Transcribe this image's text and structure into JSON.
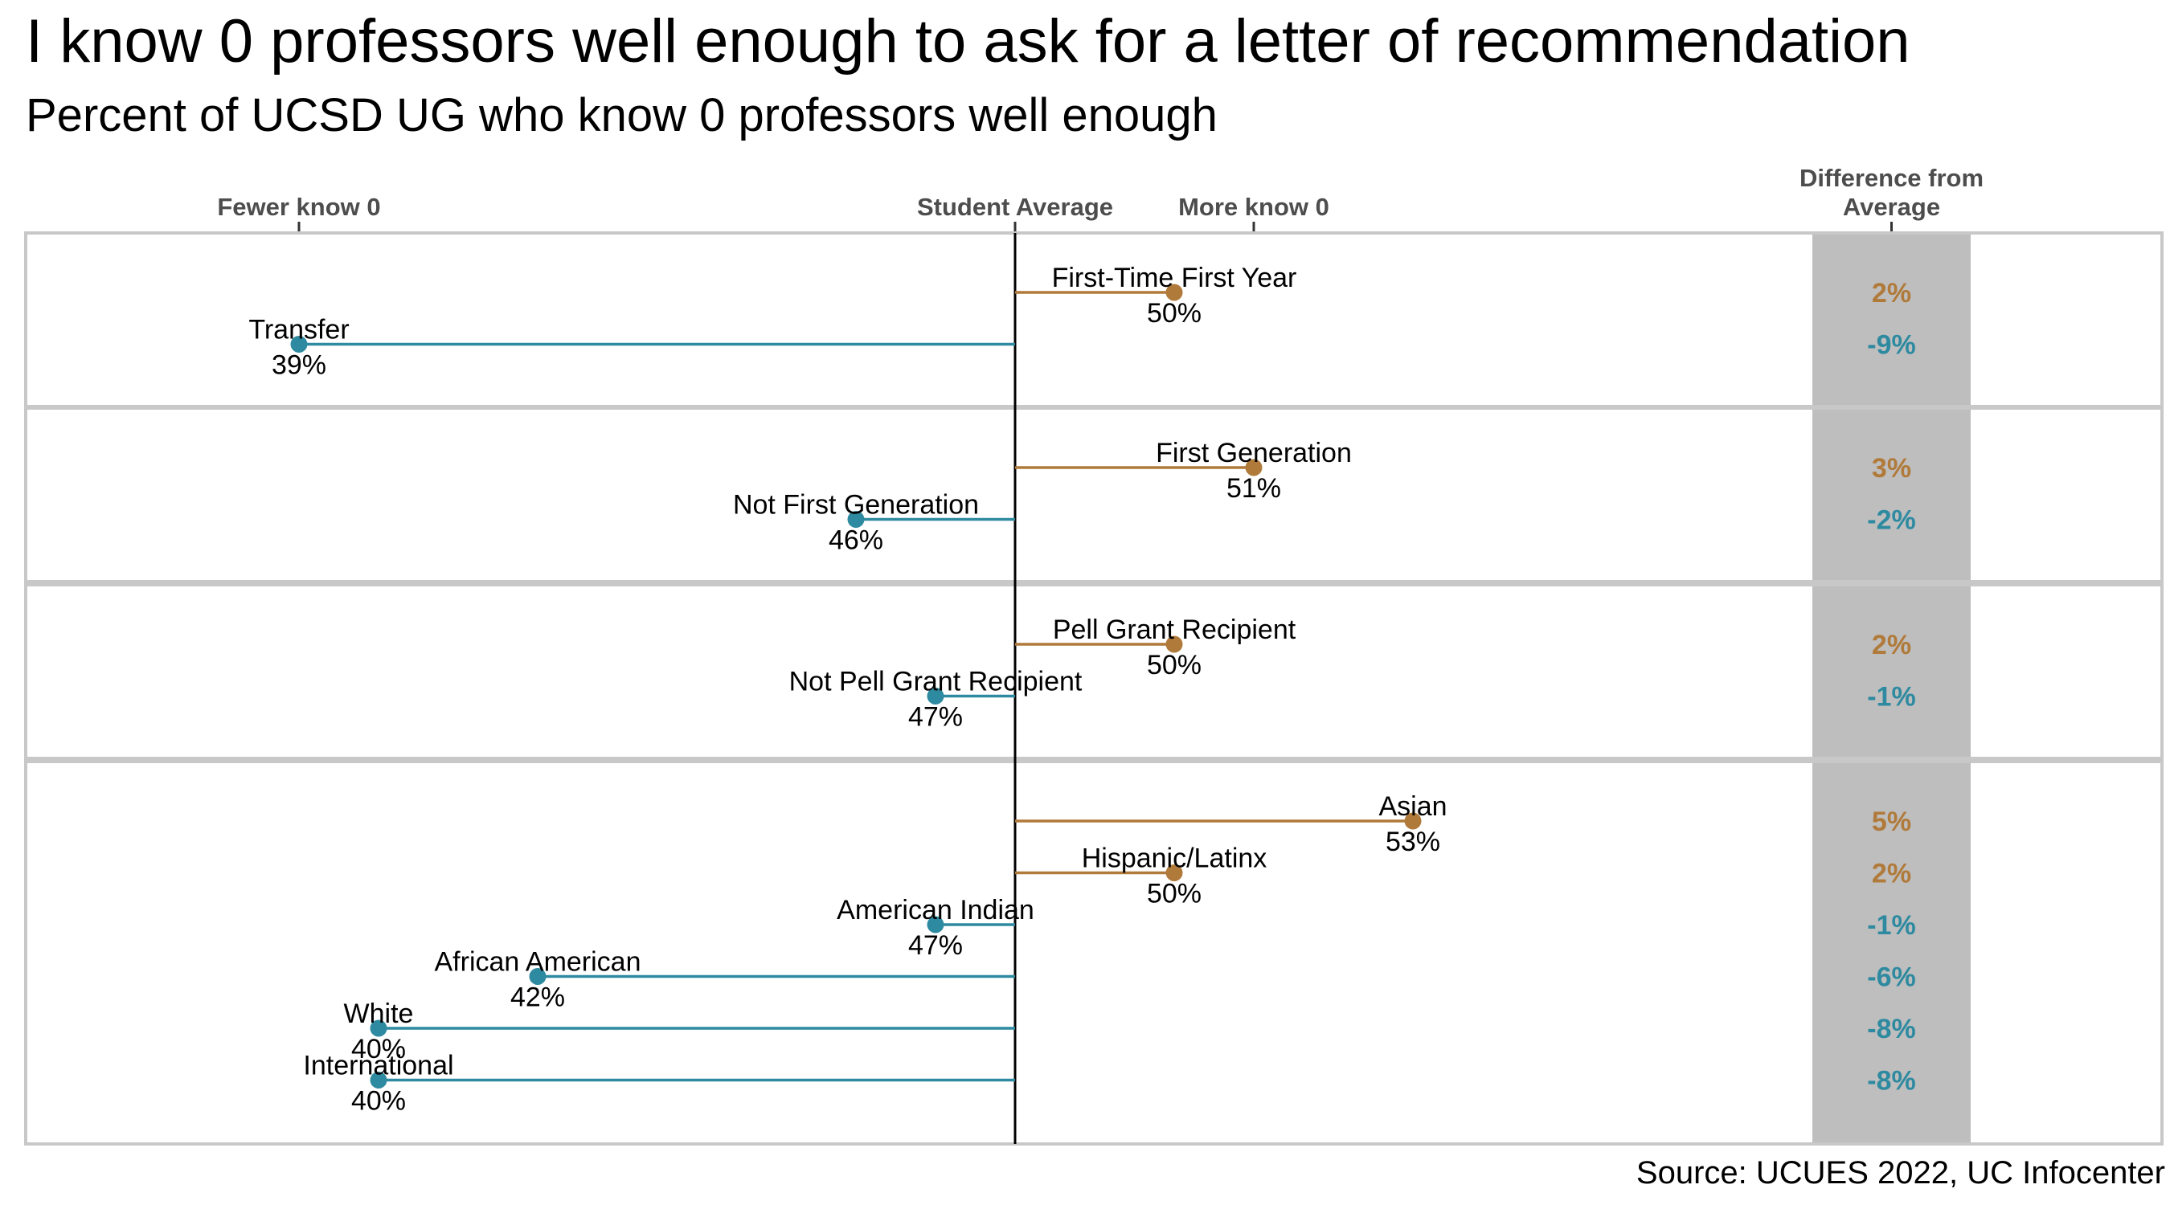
{
  "title": "I know 0 professors well enough to ask for a letter of recommendation",
  "subtitle": "Percent of UCSD UG who know 0 professors well enough",
  "source": "Source: UCUES 2022, UC Infocenter",
  "colors": {
    "above": "#b07a3a",
    "below": "#2e8aa0",
    "panel_border": "#c8c8c8",
    "diff_band": "#bebebe",
    "axis_text": "#4d4d4d"
  },
  "chart_data": {
    "type": "lollipop",
    "average": 48,
    "xlim": [
      36.5,
      61
    ],
    "axis_labels": [
      {
        "text": "Fewer know 0",
        "x": 39
      },
      {
        "text": "Student Average",
        "x": 48
      },
      {
        "text": "More know 0",
        "x": 51
      }
    ],
    "diff_header": [
      "Difference from",
      "Average"
    ],
    "panels": [
      {
        "groups": [
          {
            "name": "First-Time First Year",
            "value": 50,
            "label": "50%",
            "diff": "2%"
          },
          {
            "name": "Transfer",
            "value": 39,
            "label": "39%",
            "diff": "-9%"
          }
        ]
      },
      {
        "groups": [
          {
            "name": "First Generation",
            "value": 51,
            "label": "51%",
            "diff": "3%"
          },
          {
            "name": "Not First Generation",
            "value": 46,
            "label": "46%",
            "diff": "-2%"
          }
        ]
      },
      {
        "groups": [
          {
            "name": "Pell Grant Recipient",
            "value": 50,
            "label": "50%",
            "diff": "2%"
          },
          {
            "name": "Not Pell Grant Recipient",
            "value": 47,
            "label": "47%",
            "diff": "-1%"
          }
        ]
      },
      {
        "groups": [
          {
            "name": "Asian",
            "value": 53,
            "label": "53%",
            "diff": "5%"
          },
          {
            "name": "Hispanic/Latinx",
            "value": 50,
            "label": "50%",
            "diff": "2%"
          },
          {
            "name": "American Indian",
            "value": 47,
            "label": "47%",
            "diff": "-1%"
          },
          {
            "name": "African American",
            "value": 42,
            "label": "42%",
            "diff": "-6%"
          },
          {
            "name": "White",
            "value": 40,
            "label": "40%",
            "diff": "-8%"
          },
          {
            "name": "International",
            "value": 40,
            "label": "40%",
            "diff": "-8%"
          }
        ]
      }
    ]
  }
}
